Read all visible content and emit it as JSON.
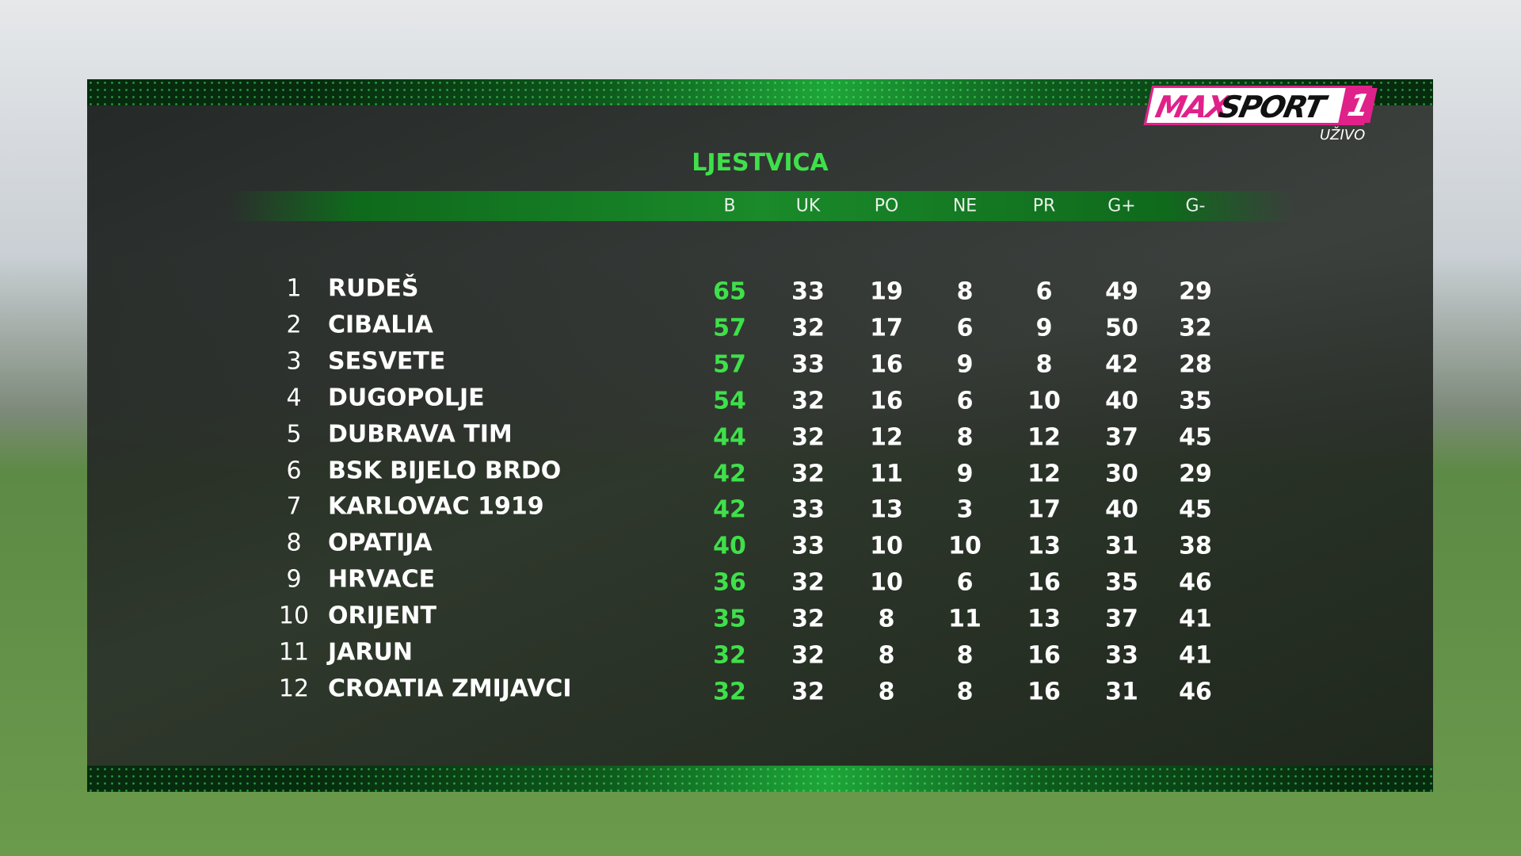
{
  "logo": {
    "brand_a": "MAX",
    "brand_b": "SPORT",
    "channel": "1",
    "status": "UŽIVO"
  },
  "standings": {
    "title": "LJESTVICA",
    "columns": [
      "B",
      "UK",
      "PO",
      "NE",
      "PR",
      "G+",
      "G-"
    ],
    "rows": [
      [
        1,
        "RUDEŠ",
        65,
        33,
        19,
        8,
        6,
        49,
        29
      ],
      [
        2,
        "CIBALIA",
        57,
        32,
        17,
        6,
        9,
        50,
        32
      ],
      [
        3,
        "SESVETE",
        57,
        33,
        16,
        9,
        8,
        42,
        28
      ],
      [
        4,
        "DUGOPOLJE",
        54,
        32,
        16,
        6,
        10,
        40,
        35
      ],
      [
        5,
        "DUBRAVA TIM",
        44,
        32,
        12,
        8,
        12,
        37,
        45
      ],
      [
        6,
        "BSK BIJELO BRDO",
        42,
        32,
        11,
        9,
        12,
        30,
        29
      ],
      [
        7,
        "KARLOVAC 1919",
        42,
        33,
        13,
        3,
        17,
        40,
        45
      ],
      [
        8,
        "OPATIJA",
        40,
        33,
        10,
        10,
        13,
        31,
        38
      ],
      [
        9,
        "HRVACE",
        36,
        32,
        10,
        6,
        16,
        35,
        46
      ],
      [
        10,
        "ORIJENT",
        35,
        32,
        8,
        11,
        13,
        37,
        41
      ],
      [
        11,
        "JARUN",
        32,
        32,
        8,
        8,
        16,
        33,
        41
      ],
      [
        12,
        "CROATIA ZMIJAVCI",
        32,
        32,
        8,
        8,
        16,
        31,
        46
      ]
    ]
  }
}
